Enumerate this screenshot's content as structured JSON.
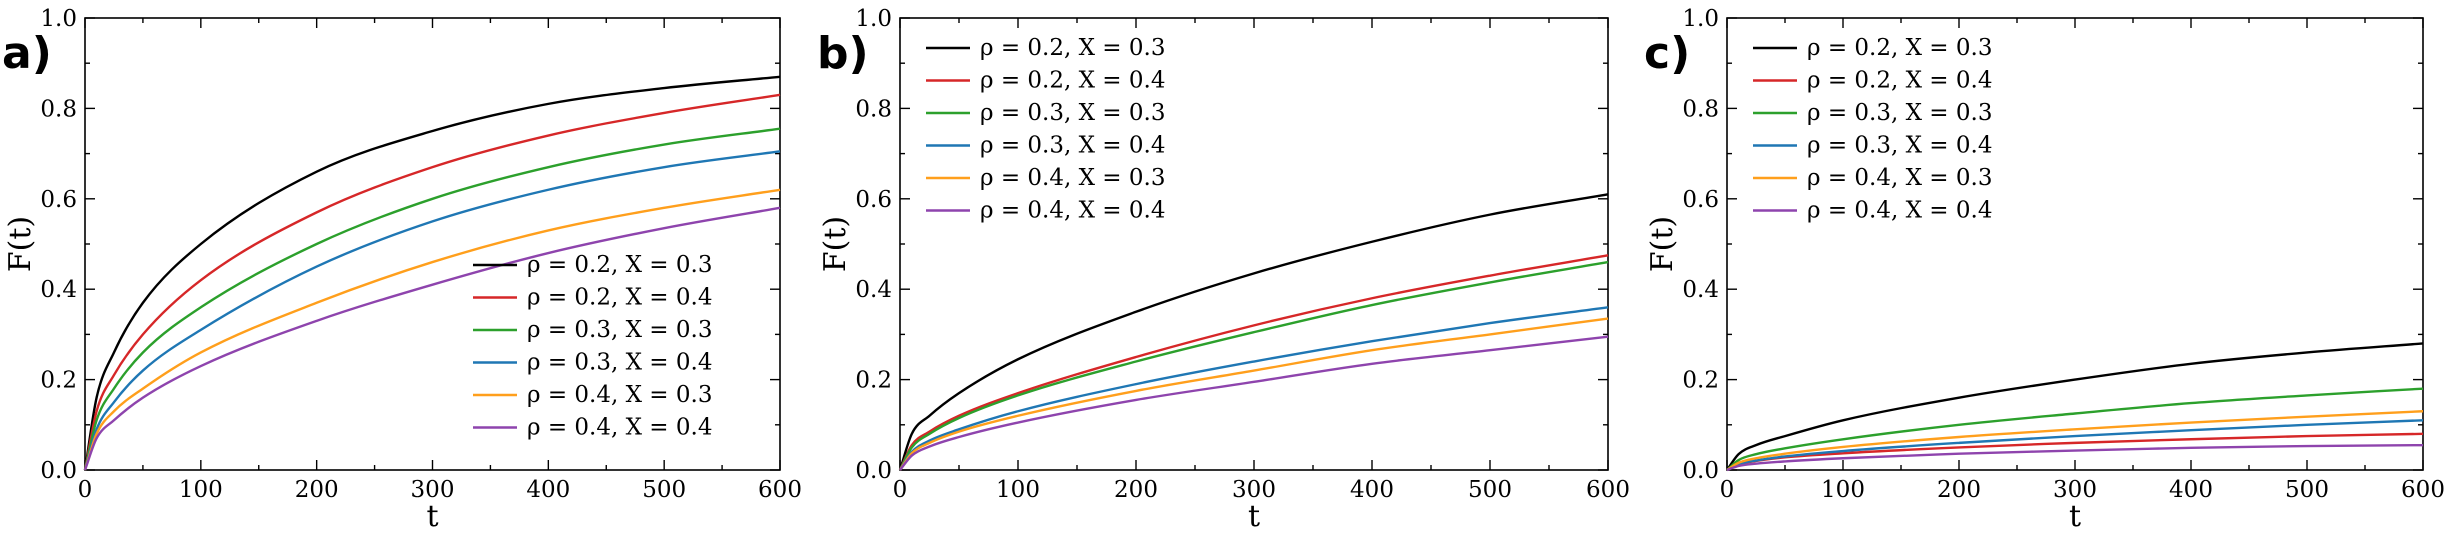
{
  "chart_data": [
    {
      "panel_label": "a)",
      "type": "line",
      "xlabel": "t",
      "ylabel": "F(t)",
      "xlim": [
        0,
        600
      ],
      "ylim": [
        0,
        1.0
      ],
      "x_ticks": [
        "0",
        "100",
        "200",
        "300",
        "400",
        "500",
        "600"
      ],
      "y_ticks": [
        "0.0",
        "0.2",
        "0.4",
        "0.6",
        "0.8",
        "1.0"
      ],
      "legend_position": "bottom-right",
      "x": [
        0,
        10,
        25,
        50,
        100,
        200,
        300,
        400,
        500,
        600
      ],
      "series": [
        {
          "name": "ρ = 0.2, X = 0.3",
          "color": "#000000",
          "values": [
            0,
            0.16,
            0.26,
            0.37,
            0.5,
            0.66,
            0.75,
            0.81,
            0.845,
            0.87
          ]
        },
        {
          "name": "ρ = 0.2, X = 0.4",
          "color": "#d62728",
          "values": [
            0,
            0.13,
            0.21,
            0.3,
            0.42,
            0.57,
            0.67,
            0.74,
            0.79,
            0.83
          ]
        },
        {
          "name": "ρ = 0.3, X = 0.3",
          "color": "#2ca02c",
          "values": [
            0,
            0.11,
            0.18,
            0.26,
            0.36,
            0.5,
            0.6,
            0.67,
            0.72,
            0.755
          ]
        },
        {
          "name": "ρ = 0.3, X = 0.4",
          "color": "#1f77b4",
          "values": [
            0,
            0.09,
            0.15,
            0.22,
            0.31,
            0.45,
            0.55,
            0.62,
            0.67,
            0.705
          ]
        },
        {
          "name": "ρ = 0.4, X = 0.3",
          "color": "#ff9f1c",
          "values": [
            0,
            0.08,
            0.13,
            0.18,
            0.26,
            0.37,
            0.46,
            0.53,
            0.58,
            0.62
          ]
        },
        {
          "name": "ρ = 0.4, X = 0.4",
          "color": "#8e44ad",
          "values": [
            0,
            0.07,
            0.11,
            0.16,
            0.23,
            0.33,
            0.41,
            0.48,
            0.535,
            0.58
          ]
        }
      ]
    },
    {
      "panel_label": "b)",
      "type": "line",
      "xlabel": "t",
      "ylabel": "F(t)",
      "xlim": [
        0,
        600
      ],
      "ylim": [
        0,
        1.0
      ],
      "x_ticks": [
        "0",
        "100",
        "200",
        "300",
        "400",
        "500",
        "600"
      ],
      "y_ticks": [
        "0.0",
        "0.2",
        "0.4",
        "0.6",
        "0.8",
        "1.0"
      ],
      "legend_position": "top-left",
      "x": [
        0,
        10,
        25,
        50,
        100,
        200,
        300,
        400,
        500,
        600
      ],
      "series": [
        {
          "name": "ρ = 0.2, X = 0.3",
          "color": "#000000",
          "values": [
            0,
            0.08,
            0.12,
            0.17,
            0.245,
            0.35,
            0.435,
            0.505,
            0.565,
            0.61
          ]
        },
        {
          "name": "ρ = 0.2, X = 0.4",
          "color": "#d62728",
          "values": [
            0,
            0.055,
            0.085,
            0.12,
            0.17,
            0.25,
            0.32,
            0.38,
            0.43,
            0.475
          ]
        },
        {
          "name": "ρ = 0.3, X = 0.3",
          "color": "#2ca02c",
          "values": [
            0,
            0.05,
            0.08,
            0.115,
            0.165,
            0.24,
            0.305,
            0.365,
            0.415,
            0.46
          ]
        },
        {
          "name": "ρ = 0.3, X = 0.4",
          "color": "#1f77b4",
          "values": [
            0,
            0.04,
            0.065,
            0.09,
            0.13,
            0.19,
            0.24,
            0.285,
            0.325,
            0.36
          ]
        },
        {
          "name": "ρ = 0.4, X = 0.3",
          "color": "#ff9f1c",
          "values": [
            0,
            0.037,
            0.06,
            0.085,
            0.12,
            0.175,
            0.22,
            0.265,
            0.3,
            0.335
          ]
        },
        {
          "name": "ρ = 0.4, X = 0.4",
          "color": "#8e44ad",
          "values": [
            0,
            0.032,
            0.052,
            0.073,
            0.105,
            0.155,
            0.195,
            0.235,
            0.265,
            0.295
          ]
        }
      ]
    },
    {
      "panel_label": "c)",
      "type": "line",
      "xlabel": "t",
      "ylabel": "F(t)",
      "xlim": [
        0,
        600
      ],
      "ylim": [
        0,
        1.0
      ],
      "x_ticks": [
        "0",
        "100",
        "200",
        "300",
        "400",
        "500",
        "600"
      ],
      "y_ticks": [
        "0.0",
        "0.2",
        "0.4",
        "0.6",
        "0.8",
        "1.0"
      ],
      "legend_position": "top-left",
      "x": [
        0,
        10,
        25,
        50,
        100,
        200,
        300,
        400,
        500,
        600
      ],
      "series": [
        {
          "name": "ρ = 0.2, X = 0.3",
          "color": "#000000",
          "values": [
            0,
            0.035,
            0.055,
            0.075,
            0.11,
            0.16,
            0.2,
            0.235,
            0.26,
            0.28
          ]
        },
        {
          "name": "ρ = 0.2, X = 0.4",
          "color": "#d62728",
          "values": [
            0,
            0.012,
            0.02,
            0.028,
            0.037,
            0.05,
            0.06,
            0.068,
            0.075,
            0.08
          ]
        },
        {
          "name": "ρ = 0.3, X = 0.3",
          "color": "#2ca02c",
          "values": [
            0,
            0.022,
            0.035,
            0.048,
            0.068,
            0.1,
            0.125,
            0.148,
            0.165,
            0.18
          ]
        },
        {
          "name": "ρ = 0.3, X = 0.4",
          "color": "#1f77b4",
          "values": [
            0,
            0.013,
            0.021,
            0.03,
            0.042,
            0.06,
            0.075,
            0.088,
            0.1,
            0.11
          ]
        },
        {
          "name": "ρ = 0.4, X = 0.3",
          "color": "#ff9f1c",
          "values": [
            0,
            0.016,
            0.026,
            0.036,
            0.051,
            0.073,
            0.09,
            0.105,
            0.118,
            0.13
          ]
        },
        {
          "name": "ρ = 0.4, X = 0.4",
          "color": "#8e44ad",
          "values": [
            0,
            0.009,
            0.014,
            0.019,
            0.026,
            0.036,
            0.043,
            0.049,
            0.053,
            0.055
          ]
        }
      ]
    }
  ]
}
